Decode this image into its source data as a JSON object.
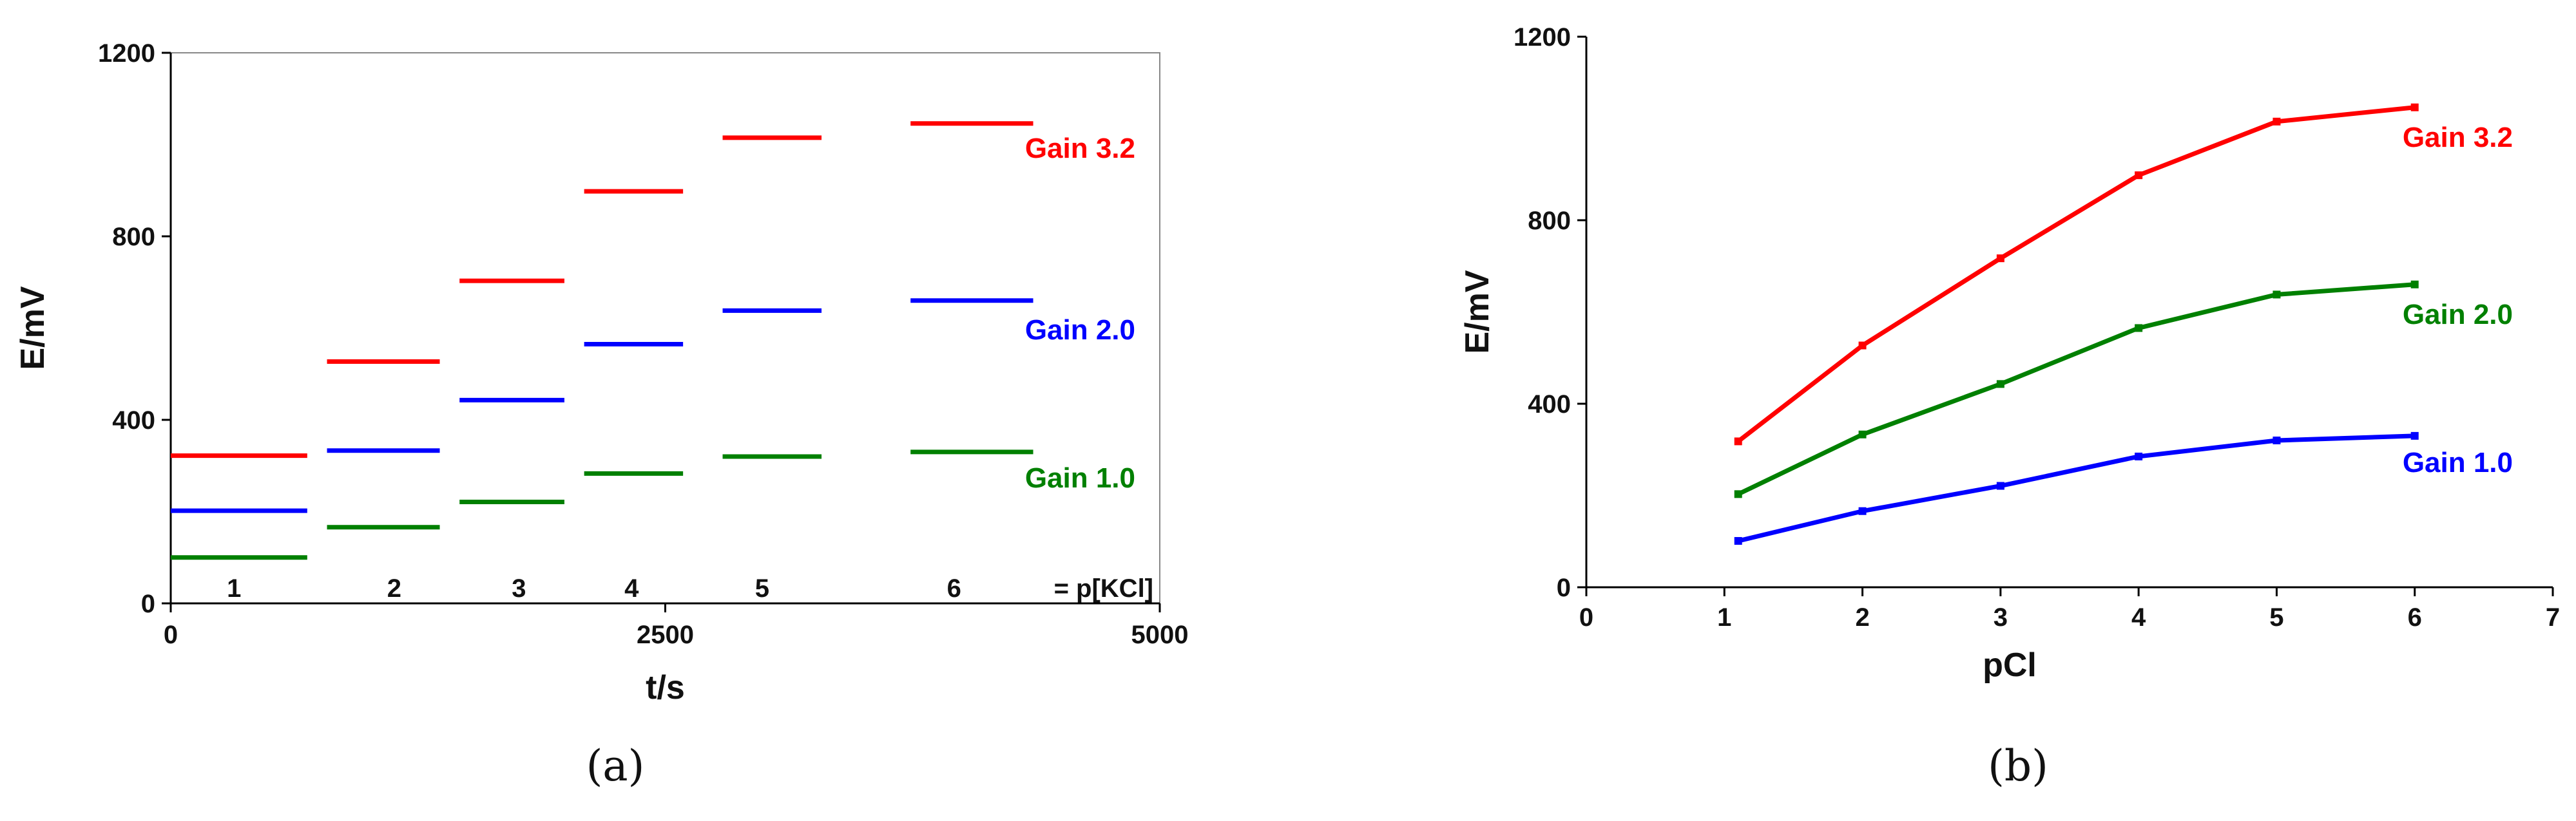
{
  "colors": {
    "red": "#ff0000",
    "blue": "#0000ff",
    "green": "#008000",
    "axis": "#000000",
    "frame": "#888888"
  },
  "chart_data": [
    {
      "panel": "(a)",
      "type": "line",
      "title": "",
      "xlabel": "t/s",
      "ylabel": "E/mV",
      "xlim": [
        0,
        5000
      ],
      "ylim": [
        0,
        1200
      ],
      "xticks": [
        "0",
        "2500",
        "5000"
      ],
      "yticks": [
        "0",
        "400",
        "800",
        "1200"
      ],
      "step_labels": [
        "1",
        "2",
        "3",
        "4",
        "5",
        "6"
      ],
      "step_suffix": "= p[KCl]",
      "step_x": [
        320,
        1130,
        1760,
        2330,
        2990,
        3960
      ],
      "series": [
        {
          "name": "Gain 3.2",
          "color": "#ff0000",
          "segments": [
            {
              "x0": 0,
              "x1": 690,
              "y": 322
            },
            {
              "x0": 790,
              "x1": 1360,
              "y": 527
            },
            {
              "x0": 1460,
              "x1": 1990,
              "y": 703
            },
            {
              "x0": 2090,
              "x1": 2590,
              "y": 898
            },
            {
              "x0": 2790,
              "x1": 3290,
              "y": 1015
            },
            {
              "x0": 3740,
              "x1": 4360,
              "y": 1046
            }
          ]
        },
        {
          "name": "Gain 2.0",
          "color": "#0000ff",
          "segments": [
            {
              "x0": 0,
              "x1": 690,
              "y": 202
            },
            {
              "x0": 790,
              "x1": 1360,
              "y": 333
            },
            {
              "x0": 1460,
              "x1": 1990,
              "y": 443
            },
            {
              "x0": 2090,
              "x1": 2590,
              "y": 565
            },
            {
              "x0": 2790,
              "x1": 3290,
              "y": 638
            },
            {
              "x0": 3740,
              "x1": 4360,
              "y": 660
            }
          ]
        },
        {
          "name": "Gain 1.0",
          "color": "#008000",
          "segments": [
            {
              "x0": 0,
              "x1": 690,
              "y": 100
            },
            {
              "x0": 790,
              "x1": 1360,
              "y": 166
            },
            {
              "x0": 1460,
              "x1": 1990,
              "y": 221
            },
            {
              "x0": 2090,
              "x1": 2590,
              "y": 283
            },
            {
              "x0": 2790,
              "x1": 3290,
              "y": 320
            },
            {
              "x0": 3740,
              "x1": 4360,
              "y": 330
            }
          ]
        }
      ]
    },
    {
      "panel": "(b)",
      "type": "line",
      "title": "",
      "xlabel": "pCl",
      "ylabel": "E/mV",
      "xlim": [
        0,
        7
      ],
      "ylim": [
        0,
        1200
      ],
      "xticks": [
        "0",
        "1",
        "2",
        "3",
        "4",
        "5",
        "6",
        "7"
      ],
      "yticks": [
        "0",
        "400",
        "800",
        "1200"
      ],
      "x": [
        1.1,
        2.0,
        3.0,
        4.0,
        5.0,
        6.0
      ],
      "series": [
        {
          "name": "Gain 3.2",
          "color": "#ff0000",
          "values": [
            318,
            527,
            717,
            898,
            1015,
            1046
          ]
        },
        {
          "name": "Gain 2.0",
          "color": "#008000",
          "values": [
            203,
            333,
            443,
            565,
            638,
            660
          ]
        },
        {
          "name": "Gain 1.0",
          "color": "#0000ff",
          "values": [
            101,
            166,
            221,
            285,
            320,
            330
          ]
        }
      ]
    }
  ]
}
